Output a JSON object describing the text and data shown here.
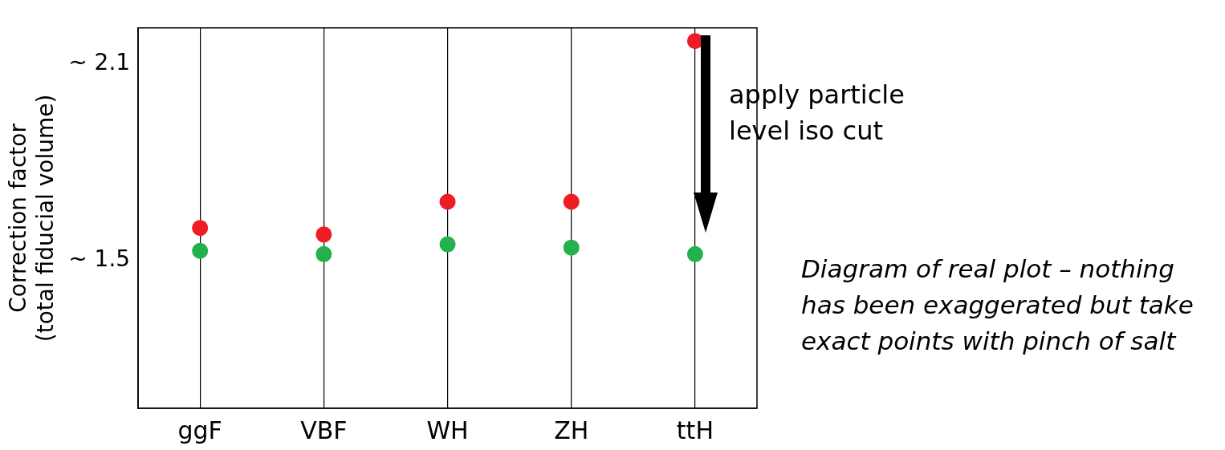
{
  "chart_data": {
    "type": "scatter",
    "ylabel": "Correction factor\n(total fiducial volume)",
    "categories": [
      "ggF",
      "VBF",
      "WH",
      "ZH",
      "ttH"
    ],
    "series": [
      {
        "color": "#ee1c25",
        "values": [
          1.6,
          1.58,
          1.68,
          1.68,
          2.17
        ]
      },
      {
        "color": "#22b14c",
        "values": [
          1.53,
          1.52,
          1.55,
          1.54,
          1.52
        ]
      }
    ],
    "ylim": [
      1.05,
      2.21
    ],
    "yticks": [
      {
        "value": 1.5,
        "label": "~ 1.5"
      },
      {
        "value": 2.1,
        "label": "~ 2.1"
      }
    ],
    "grid": "x",
    "marker": "circle",
    "annotations": [
      "apply particle level iso cut",
      "Diagram of real plot – nothing has been exaggerated but take exact points with pinch of salt"
    ]
  }
}
